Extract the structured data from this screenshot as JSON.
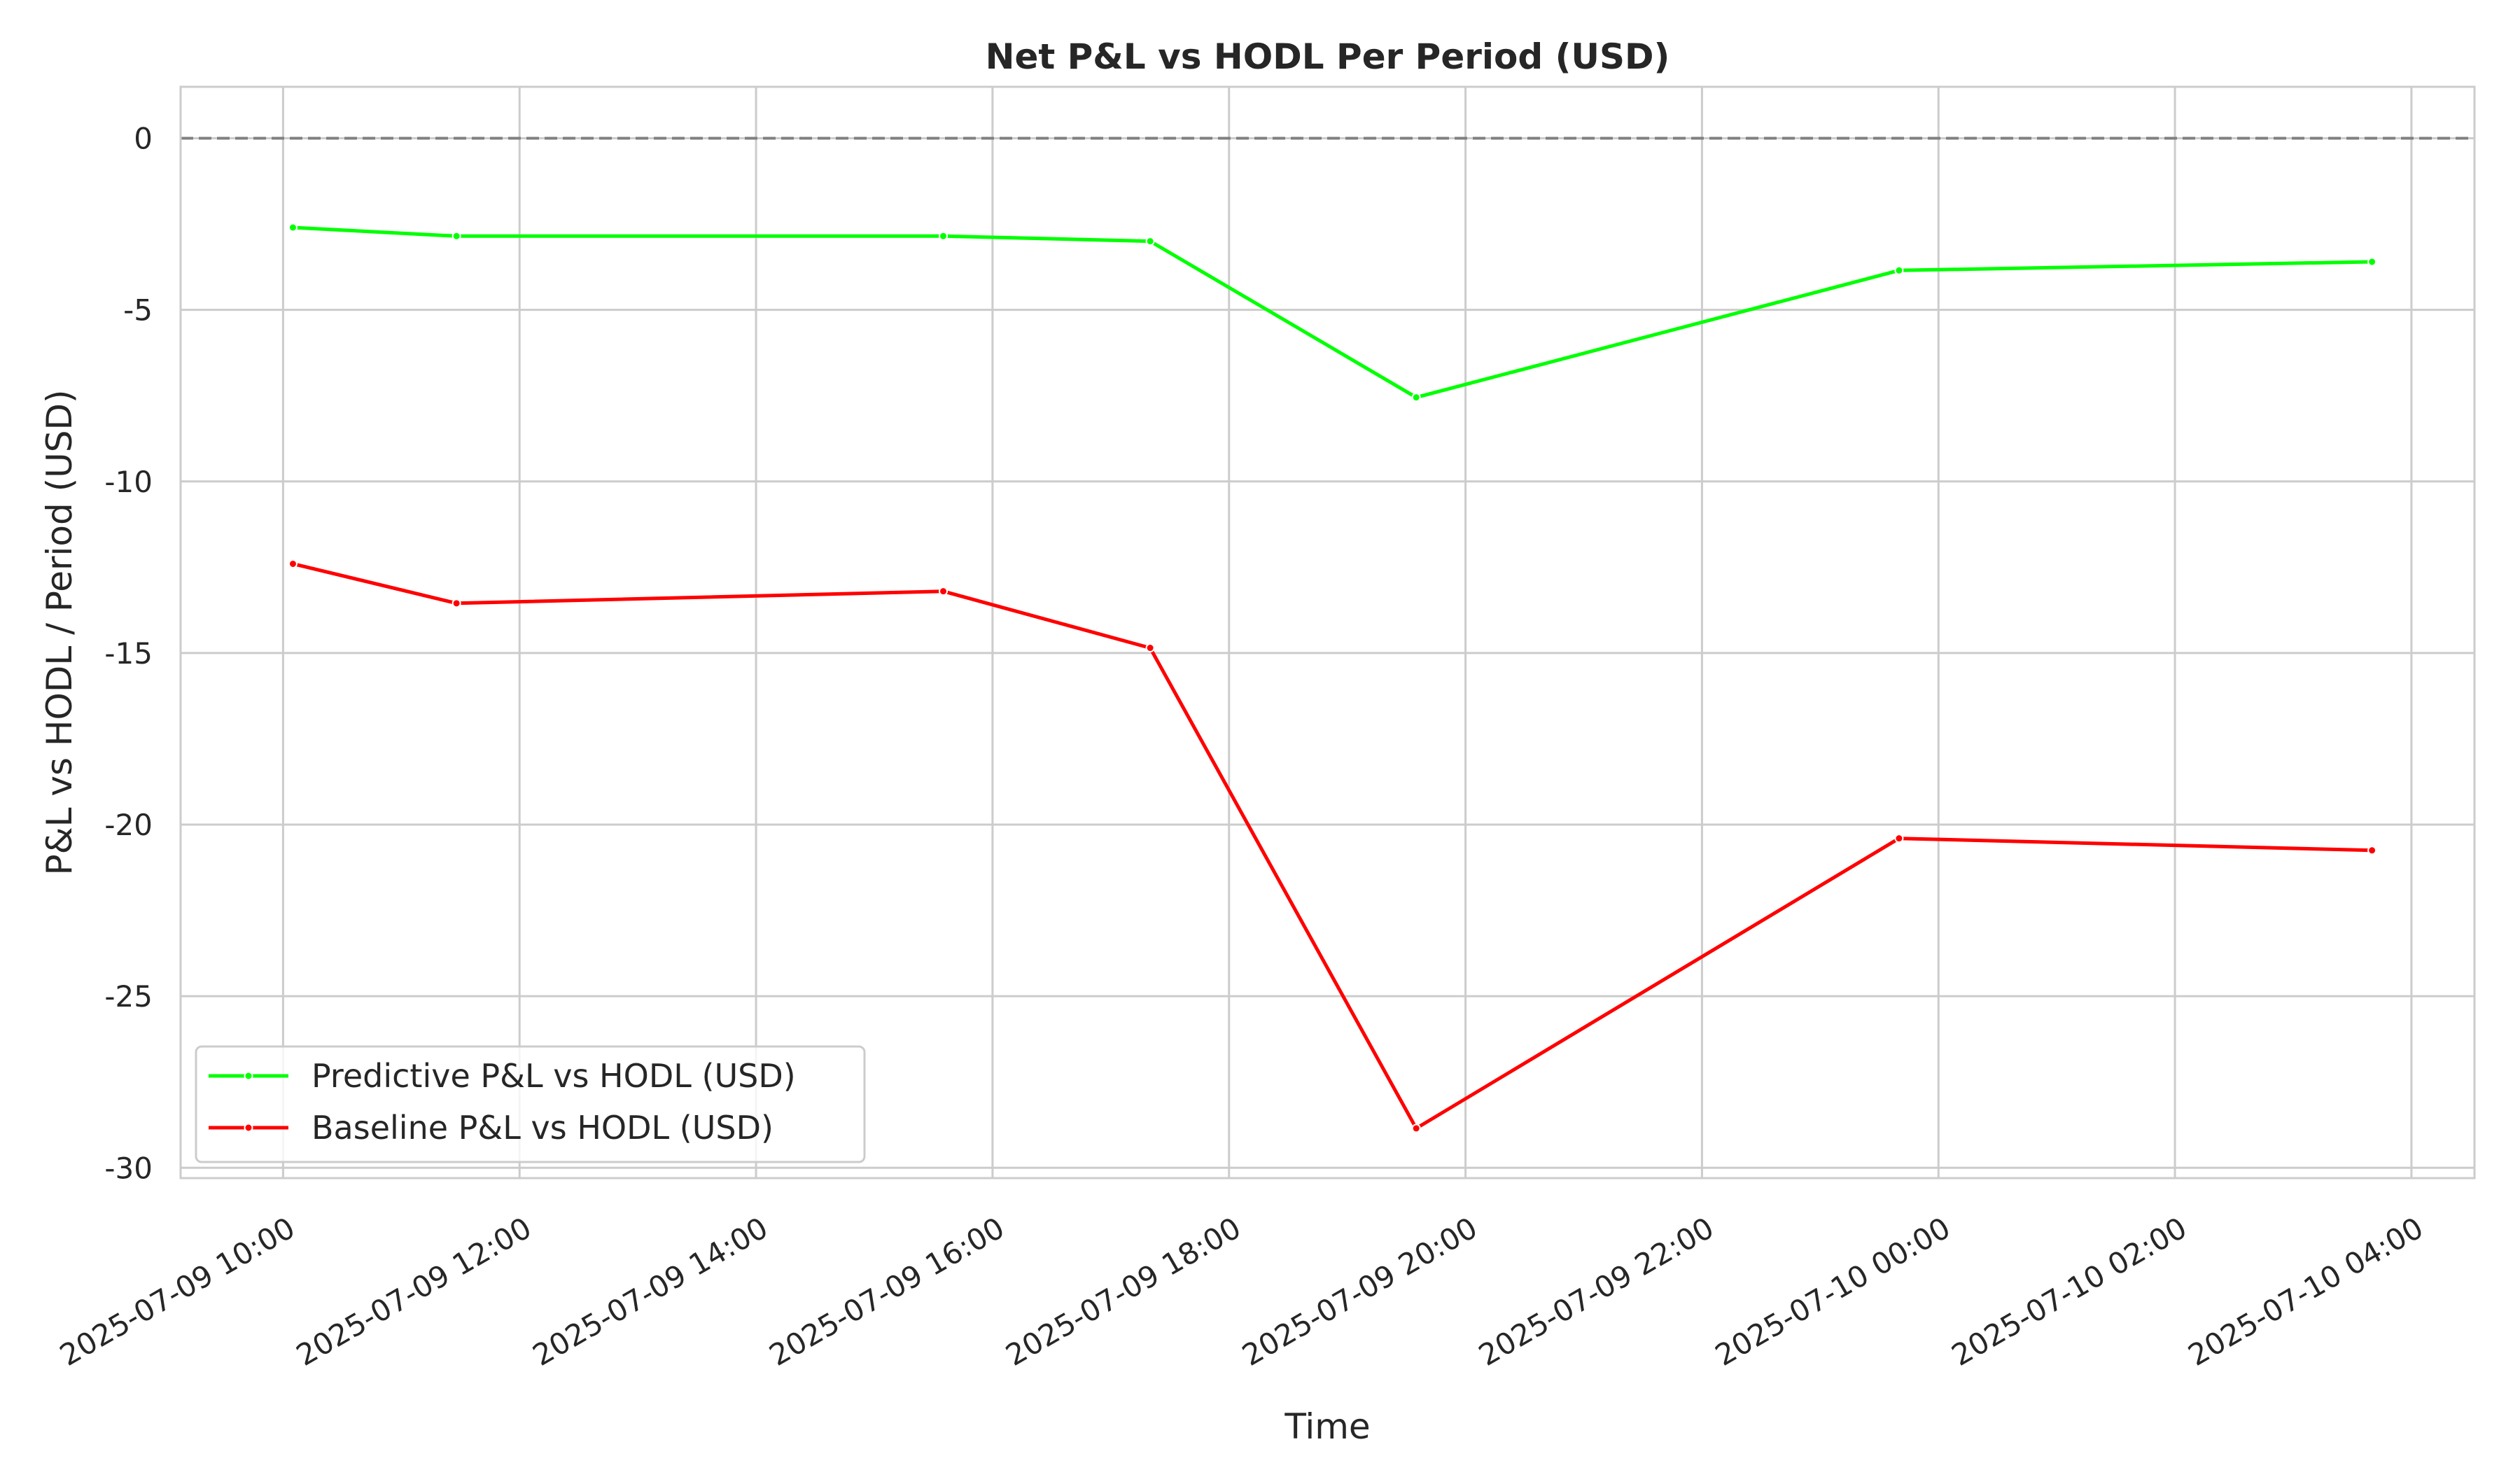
{
  "chart_data": {
    "type": "line",
    "title": "Net P&L vs HODL Per Period (USD)",
    "xlabel": "Time",
    "ylabel": "P&L vs HODL / Period (USD)",
    "xlim": [
      "2025-07-09 09:08",
      "2025-07-10 04:32"
    ],
    "ylim": [
      -30.3,
      1.5
    ],
    "y_ticks": [
      0,
      -5,
      -10,
      -15,
      -20,
      -25,
      -30
    ],
    "x_ticks": [
      "2025-07-09 10:00",
      "2025-07-09 12:00",
      "2025-07-09 14:00",
      "2025-07-09 16:00",
      "2025-07-09 18:00",
      "2025-07-09 20:00",
      "2025-07-09 22:00",
      "2025-07-10 00:00",
      "2025-07-10 02:00",
      "2025-07-10 04:00"
    ],
    "grid": true,
    "legend_position": "lower-left",
    "reference_line": {
      "y": 0,
      "style": "dashed",
      "color": "#808080"
    },
    "series": [
      {
        "name": "Predictive P&L vs HODL (USD)",
        "color": "#00ff00",
        "points": [
          {
            "x": "2025-07-09 10:05",
            "y": -2.6
          },
          {
            "x": "2025-07-09 11:28",
            "y": -2.85
          },
          {
            "x": "2025-07-09 15:35",
            "y": -2.85
          },
          {
            "x": "2025-07-09 17:20",
            "y": -3.0
          },
          {
            "x": "2025-07-09 19:35",
            "y": -7.55
          },
          {
            "x": "2025-07-09 23:40",
            "y": -3.85
          },
          {
            "x": "2025-07-10 03:40",
            "y": -3.6
          }
        ]
      },
      {
        "name": "Baseline P&L vs HODL (USD)",
        "color": "#ff0000",
        "points": [
          {
            "x": "2025-07-09 10:05",
            "y": -12.4
          },
          {
            "x": "2025-07-09 11:28",
            "y": -13.55
          },
          {
            "x": "2025-07-09 15:35",
            "y": -13.2
          },
          {
            "x": "2025-07-09 17:20",
            "y": -14.85
          },
          {
            "x": "2025-07-09 19:35",
            "y": -28.85
          },
          {
            "x": "2025-07-09 23:40",
            "y": -20.4
          },
          {
            "x": "2025-07-10 03:40",
            "y": -20.75
          }
        ]
      }
    ]
  }
}
